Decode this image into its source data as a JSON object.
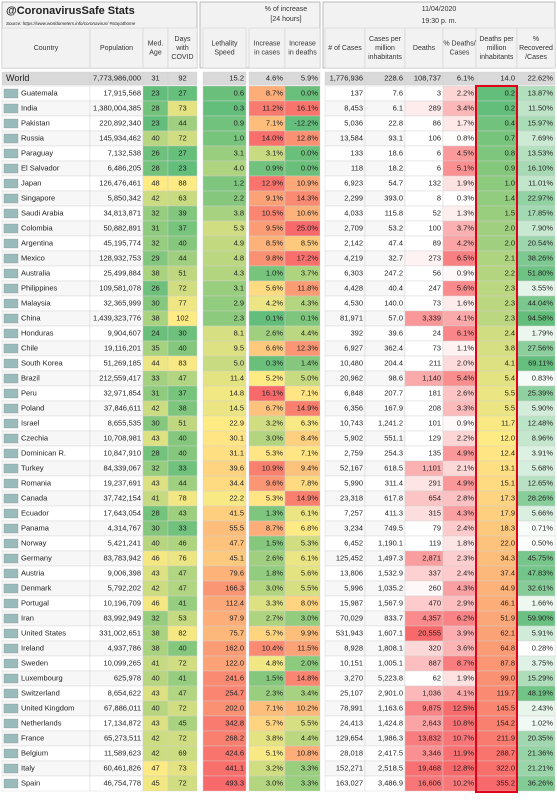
{
  "header": {
    "title": "@CoronavirusSafe Stats",
    "source": "Source: https://www.worldometers.info/coronavirus/ #stayathome",
    "date": "11/04/2020",
    "time": "19:30 p. m.",
    "increase_group": "% of increase",
    "increase_sub": "[24 hours]"
  },
  "table": {
    "columns": [
      "Country",
      "Population",
      "Med. Age",
      "Days with COVID",
      "Lethality Speed",
      "Increase in cases",
      "Increase in deaths",
      "# of Cases",
      "Cases per million inhabitants",
      "Deaths",
      "% Deaths/ Cases",
      "Deaths per million inhabitants",
      "% Recovered /Cases"
    ],
    "rows": [
      [
        "World",
        "7,773,986,000",
        "31",
        "92",
        "15.2",
        "4.6%",
        "5.9%",
        "1,776,936",
        "228.6",
        "108,737",
        "6.1%",
        "14.0",
        "22.62%"
      ],
      [
        "Guatemala",
        "17,915,568",
        "23",
        "27",
        "0.6",
        "8.7%",
        "0.0%",
        "137",
        "7.6",
        "3",
        "2.2%",
        "0.2",
        "13.87%"
      ],
      [
        "India",
        "1,380,004,385",
        "28",
        "73",
        "0.3",
        "11.2%",
        "16.1%",
        "8,453",
        "6.1",
        "289",
        "3.4%",
        "0.2",
        "11.50%"
      ],
      [
        "Pakistan",
        "220,892,340",
        "23",
        "44",
        "0.9",
        "7.1%",
        "-12.2%",
        "5,036",
        "22.8",
        "86",
        "1.7%",
        "0.4",
        "15.97%"
      ],
      [
        "Russia",
        "145,934,462",
        "40",
        "72",
        "1.0",
        "14.0%",
        "12.8%",
        "13,584",
        "93.1",
        "106",
        "0.8%",
        "0.7",
        "7.69%"
      ],
      [
        "Paraguay",
        "7,132,538",
        "26",
        "27",
        "3.1",
        "3.1%",
        "0.0%",
        "133",
        "18.6",
        "6",
        "4.5%",
        "0.8",
        "13.53%"
      ],
      [
        "El Salvador",
        "6,486,205",
        "28",
        "23",
        "4.0",
        "0.9%",
        "0.0%",
        "118",
        "18.2",
        "6",
        "5.1%",
        "0.9",
        "16.10%"
      ],
      [
        "Japan",
        "126,476,461",
        "48",
        "88",
        "1.2",
        "12.9%",
        "10.9%",
        "6,923",
        "54.7",
        "132",
        "1.9%",
        "1.0",
        "11.01%"
      ],
      [
        "Singapore",
        "5,850,342",
        "42",
        "63",
        "2.2",
        "9.1%",
        "14.3%",
        "2,299",
        "393.0",
        "8",
        "0.3%",
        "1.4",
        "22.97%"
      ],
      [
        "Saudi Arabia",
        "34,813,871",
        "32",
        "39",
        "3.8",
        "10.5%",
        "10.6%",
        "4,033",
        "115.8",
        "52",
        "1.3%",
        "1.5",
        "17.85%"
      ],
      [
        "Colombia",
        "50,882,891",
        "31",
        "37",
        "5.3",
        "9.5%",
        "25.0%",
        "2,709",
        "53.2",
        "100",
        "3.7%",
        "2.0",
        "7.90%"
      ],
      [
        "Argentina",
        "45,195,774",
        "32",
        "40",
        "4.9",
        "8.5%",
        "8.5%",
        "2,142",
        "47.4",
        "89",
        "4.2%",
        "2.0",
        "20.54%"
      ],
      [
        "Mexico",
        "128,932,753",
        "29",
        "44",
        "4.8",
        "9.8%",
        "17.2%",
        "4,219",
        "32.7",
        "273",
        "6.5%",
        "2.1",
        "38.26%"
      ],
      [
        "Australia",
        "25,499,884",
        "38",
        "51",
        "4.3",
        "1.0%",
        "3.7%",
        "6,303",
        "247.2",
        "56",
        "0.9%",
        "2.2",
        "51.80%"
      ],
      [
        "Philippines",
        "109,581,078",
        "26",
        "72",
        "3.1",
        "5.6%",
        "11.8%",
        "4,428",
        "40.4",
        "247",
        "5.6%",
        "2.3",
        "3.55%"
      ],
      [
        "Malaysia",
        "32,365,999",
        "30",
        "77",
        "2.9",
        "4.2%",
        "4.3%",
        "4,530",
        "140.0",
        "73",
        "1.6%",
        "2.3",
        "44.04%"
      ],
      [
        "China",
        "1,439,323,776",
        "38",
        "102",
        "2.3",
        "0.1%",
        "0.1%",
        "81,971",
        "57.0",
        "3,339",
        "4.1%",
        "2.3",
        "94.58%"
      ],
      [
        "Honduras",
        "9,904,607",
        "24",
        "30",
        "8.1",
        "2.6%",
        "4.4%",
        "392",
        "39.6",
        "24",
        "6.1%",
        "2.4",
        "1.79%"
      ],
      [
        "Chile",
        "19,116,201",
        "35",
        "40",
        "9.5",
        "6.6%",
        "12.3%",
        "6,927",
        "362.4",
        "73",
        "1.1%",
        "3.8",
        "27.56%"
      ],
      [
        "South Korea",
        "51,269,185",
        "44",
        "83",
        "5.0",
        "0.3%",
        "1.4%",
        "10,480",
        "204.4",
        "211",
        "2.0%",
        "4.1",
        "69.11%"
      ],
      [
        "Brazil",
        "212,559,417",
        "33",
        "47",
        "11.4",
        "5.2%",
        "5.0%",
        "20,962",
        "98.6",
        "1,140",
        "5.4%",
        "5.4",
        "0.83%"
      ],
      [
        "Peru",
        "32,971,854",
        "31",
        "37",
        "14.8",
        "16.1%",
        "7.1%",
        "6,848",
        "207.7",
        "181",
        "2.6%",
        "5.5",
        "25.39%"
      ],
      [
        "Poland",
        "37,846,611",
        "42",
        "38",
        "14.5",
        "6.7%",
        "14.9%",
        "6,356",
        "167.9",
        "208",
        "3.3%",
        "5.5",
        "5.90%"
      ],
      [
        "Israel",
        "8,655,535",
        "30",
        "51",
        "22.9",
        "3.2%",
        "6.3%",
        "10,743",
        "1,241.2",
        "101",
        "0.9%",
        "11.7",
        "12.48%"
      ],
      [
        "Czechia",
        "10,708,981",
        "43",
        "40",
        "30.1",
        "3.0%",
        "8.4%",
        "5,902",
        "551.1",
        "129",
        "2.2%",
        "12.0",
        "8.96%"
      ],
      [
        "Dominican R.",
        "10,847,910",
        "28",
        "40",
        "31.1",
        "5.3%",
        "7.1%",
        "2,759",
        "254.3",
        "135",
        "4.9%",
        "12.4",
        "3.91%"
      ],
      [
        "Turkey",
        "84,339,067",
        "32",
        "33",
        "39.6",
        "10.9%",
        "9.4%",
        "52,167",
        "618.5",
        "1,101",
        "2.1%",
        "13.1",
        "5.68%"
      ],
      [
        "Romania",
        "19,237,691",
        "43",
        "44",
        "34.4",
        "9.6%",
        "7.8%",
        "5,990",
        "311.4",
        "291",
        "4.9%",
        "15.1",
        "12.65%"
      ],
      [
        "Canada",
        "37,742,154",
        "41",
        "78",
        "22.2",
        "5.3%",
        "14.9%",
        "23,318",
        "617.8",
        "654",
        "2.8%",
        "17.3",
        "28.26%"
      ],
      [
        "Ecuador",
        "17,643,054",
        "28",
        "43",
        "41.5",
        "1.3%",
        "6.1%",
        "7,257",
        "411.3",
        "315",
        "4.3%",
        "17.9",
        "5.66%"
      ],
      [
        "Panama",
        "4,314,767",
        "30",
        "33",
        "55.5",
        "8.7%",
        "6.8%",
        "3,234",
        "749.5",
        "79",
        "2.4%",
        "18.3",
        "0.71%"
      ],
      [
        "Norway",
        "5,421,241",
        "40",
        "46",
        "47.7",
        "1.5%",
        "5.3%",
        "6,452",
        "1,190.1",
        "119",
        "1.8%",
        "22.0",
        "0.50%"
      ],
      [
        "Germany",
        "83,783,942",
        "46",
        "76",
        "45.1",
        "2.6%",
        "6.1%",
        "125,452",
        "1,497.3",
        "2,871",
        "2.3%",
        "34.3",
        "45.75%"
      ],
      [
        "Austria",
        "9,006,398",
        "43",
        "47",
        "79.6",
        "1.8%",
        "5.6%",
        "13,806",
        "1,532.9",
        "337",
        "2.4%",
        "37.4",
        "47.83%"
      ],
      [
        "Denmark",
        "5,792,202",
        "42",
        "47",
        "166.3",
        "3.0%",
        "5.5%",
        "5,996",
        "1,035.2",
        "260",
        "4.3%",
        "44.9",
        "32.61%"
      ],
      [
        "Portugal",
        "10,196,709",
        "46",
        "41",
        "112.4",
        "3.3%",
        "8.0%",
        "15,987",
        "1,567.9",
        "470",
        "2.9%",
        "46.1",
        "1.66%"
      ],
      [
        "Iran",
        "83,992,949",
        "32",
        "53",
        "97.9",
        "2.7%",
        "3.0%",
        "70,029",
        "833.7",
        "4,357",
        "6.2%",
        "51.9",
        "59.90%"
      ],
      [
        "United States",
        "331,002,651",
        "38",
        "82",
        "75.7",
        "5.7%",
        "9.9%",
        "531,943",
        "1,607.1",
        "20,555",
        "3.9%",
        "62.1",
        "5.91%"
      ],
      [
        "Ireland",
        "4,937,786",
        "38",
        "40",
        "162.0",
        "10.4%",
        "11.5%",
        "8,928",
        "1,808.1",
        "320",
        "3.6%",
        "64.8",
        "0.28%"
      ],
      [
        "Sweden",
        "10,099,265",
        "41",
        "72",
        "122.0",
        "4.8%",
        "2.0%",
        "10,151",
        "1,005.1",
        "887",
        "8.7%",
        "87.8",
        "3.75%"
      ],
      [
        "Luxembourg",
        "625,978",
        "40",
        "41",
        "241.6",
        "1.5%",
        "14.8%",
        "3,270",
        "5,223.8",
        "62",
        "1.9%",
        "99.0",
        "15.29%"
      ],
      [
        "Switzerland",
        "8,654,622",
        "43",
        "47",
        "254.7",
        "2.3%",
        "3.4%",
        "25,107",
        "2,901.0",
        "1,036",
        "4.1%",
        "119.7",
        "48.19%"
      ],
      [
        "United Kingdom",
        "67,886,011",
        "40",
        "72",
        "202.0",
        "7.1%",
        "10.2%",
        "78,991",
        "1,163.6",
        "9,875",
        "12.5%",
        "145.5",
        "2.43%"
      ],
      [
        "Netherlands",
        "17,134,872",
        "43",
        "45",
        "342.8",
        "5.7%",
        "5.5%",
        "24,413",
        "1,424.8",
        "2,643",
        "10.8%",
        "154.2",
        "1.02%"
      ],
      [
        "France",
        "65,273,511",
        "42",
        "72",
        "268.2",
        "3.8%",
        "4.4%",
        "129,654",
        "1,986.3",
        "13,832",
        "10.7%",
        "211.9",
        "20.35%"
      ],
      [
        "Belgium",
        "11,589,623",
        "42",
        "69",
        "424.6",
        "5.1%",
        "10.8%",
        "28,018",
        "2,417.5",
        "3,346",
        "11.9%",
        "288.7",
        "21.36%"
      ],
      [
        "Italy",
        "60,461,826",
        "47",
        "73",
        "441.1",
        "3.2%",
        "3.3%",
        "152,271",
        "2,518.5",
        "19,468",
        "12.8%",
        "322.0",
        "21.21%"
      ],
      [
        "Spain",
        "46,754,778",
        "45",
        "72",
        "493.3",
        "3.0%",
        "3.3%",
        "163,027",
        "3,486.9",
        "16,606",
        "10.2%",
        "355.2",
        "36.26%"
      ]
    ]
  }
}
